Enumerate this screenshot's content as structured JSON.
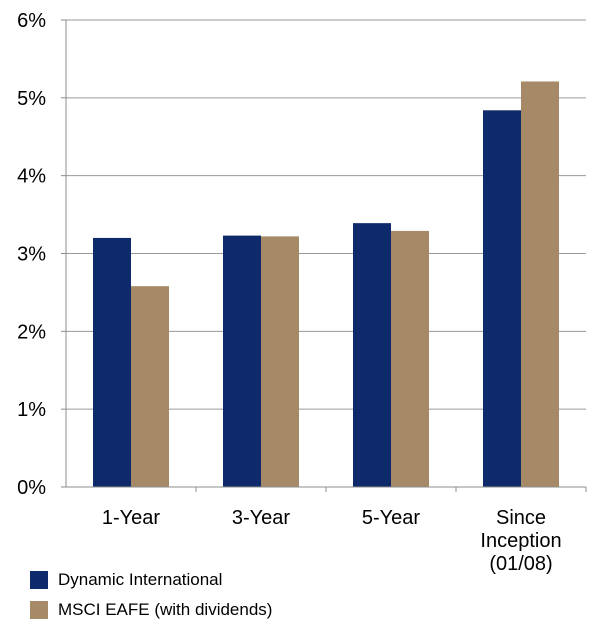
{
  "chart_data": {
    "type": "bar",
    "title": "",
    "xlabel": "",
    "ylabel": "",
    "categories": [
      "1-Year",
      "3-Year",
      "5-Year",
      "Since Inception (01/08)"
    ],
    "category_lines": [
      [
        "1-Year"
      ],
      [
        "3-Year"
      ],
      [
        "5-Year"
      ],
      [
        "Since",
        "Inception",
        "(01/08)"
      ]
    ],
    "series": [
      {
        "name": "Dynamic International",
        "color": "#0f2a6b",
        "values": [
          3.2,
          3.23,
          3.39,
          4.84
        ]
      },
      {
        "name": "MSCI EAFE (with dividends)",
        "color": "#a68966",
        "values": [
          2.58,
          3.22,
          3.29,
          5.21
        ]
      }
    ],
    "ylim": [
      0,
      6
    ],
    "yticks": [
      0,
      1,
      2,
      3,
      4,
      5,
      6
    ],
    "ytick_labels": [
      "0%",
      "1%",
      "2%",
      "3%",
      "4%",
      "5%",
      "6%"
    ],
    "grid": true,
    "legend": "bottom-left"
  }
}
